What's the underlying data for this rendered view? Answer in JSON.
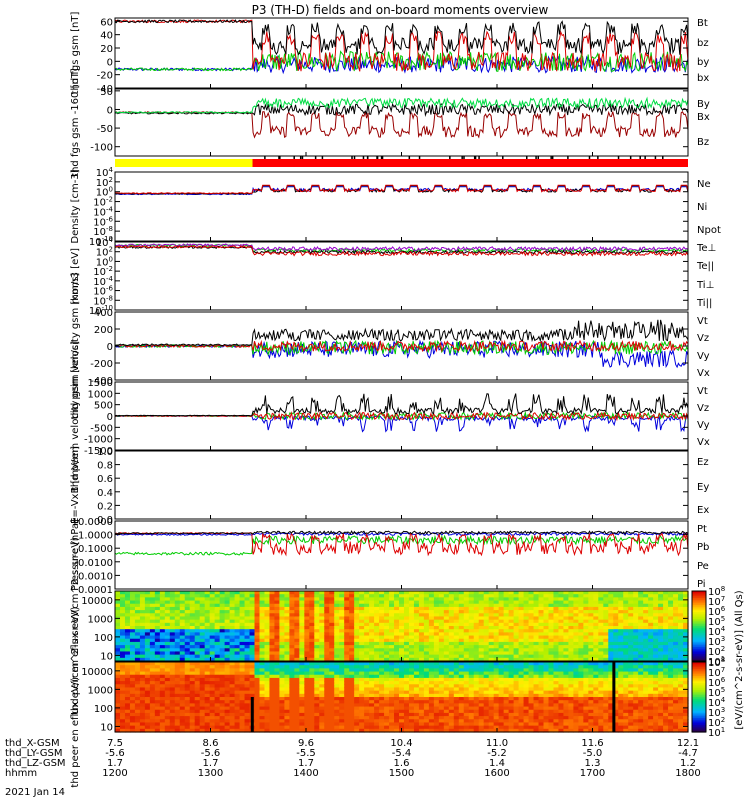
{
  "title": "P3 (TH-D) fields and on-board moments overview",
  "date_label": "2021 Jan 14",
  "ephemeris": {
    "rows": [
      {
        "name": "thd_X-GSM",
        "values": [
          "7.5",
          "8.6",
          "9.6",
          "10.4",
          "11.0",
          "11.6",
          "12.1"
        ]
      },
      {
        "name": "thd_LY-GSM",
        "values": [
          "-5.6",
          "-5.6",
          "-5.5",
          "-5.4",
          "-5.2",
          "-5.0",
          "-4.7"
        ]
      },
      {
        "name": "thd_LZ-GSM",
        "values": [
          "1.7",
          "1.7",
          "1.7",
          "1.6",
          "1.4",
          "1.3",
          "1.2"
        ]
      },
      {
        "name": "hhmm",
        "values": [
          "1200",
          "1300",
          "1400",
          "1500",
          "1600",
          "1700",
          "1800"
        ]
      }
    ]
  },
  "chart_data": [
    {
      "type": "line",
      "ylabel": "thd fgs gsm [nT]",
      "ylim": [
        -40,
        65
      ],
      "yticks": [
        "60",
        "40",
        "20",
        "0",
        "-20",
        "-40"
      ],
      "yticks_values": [
        60,
        40,
        20,
        0,
        -20,
        -40
      ],
      "series": [
        {
          "name": "Bt",
          "color": "#000000"
        },
        {
          "name": "bz",
          "color": "#dd0000"
        },
        {
          "name": "by",
          "color": "#00cc00"
        },
        {
          "name": "bx",
          "color": "#0000dd"
        }
      ]
    },
    {
      "type": "line",
      "ylabel": "thd fgs gsm -160",
      "ylabel_unit": "[nT]",
      "ylim": [
        -125,
        55
      ],
      "yticks": [
        "50",
        "0",
        "-50",
        "-100"
      ],
      "yticks_values": [
        50,
        0,
        -50,
        -100
      ],
      "series": [
        {
          "name": "By",
          "color": "#00dd44"
        },
        {
          "name": "Bx",
          "color": "#000000"
        },
        {
          "name": "Bz",
          "color": "#990000"
        }
      ]
    },
    {
      "type": "line",
      "ylabel": "Density [cm-3]",
      "ylim": [
        -10,
        4
      ],
      "yscale": "log",
      "yticks": [
        "10^4",
        "10^2",
        "10^0",
        "10^-2",
        "10^-4",
        "10^-6",
        "10^-8",
        "10^-10"
      ],
      "yticks_values": [
        4,
        2,
        0,
        -2,
        -4,
        -6,
        -8,
        -10
      ],
      "series": [
        {
          "name": "Ne",
          "color": "#dd0000"
        },
        {
          "name": "Ni",
          "color": "#000000"
        },
        {
          "name": "Npot",
          "color": "#0000dd"
        }
      ]
    },
    {
      "type": "line",
      "ylabel": "mom3 [eV]",
      "ylim": [
        -10,
        4
      ],
      "yscale": "log",
      "yticks": [
        "10^4",
        "10^2",
        "10^0",
        "10^-2",
        "10^-4",
        "10^-6",
        "10^-8",
        "10^-10"
      ],
      "yticks_values": [
        4,
        2,
        0,
        -2,
        -4,
        -6,
        -8,
        -10
      ],
      "series": [
        {
          "name": "Te⊥",
          "color": "#dd0000"
        },
        {
          "name": "Te||",
          "color": "#000000"
        },
        {
          "name": "Ti⊥",
          "color": "#9900cc"
        },
        {
          "name": "Ti||",
          "color": "#00cc00"
        }
      ]
    },
    {
      "type": "line",
      "ylabel": "thd peim velocity gsm [km/s]",
      "ylim": [
        -400,
        400
      ],
      "yticks": [
        "400",
        "200",
        "0",
        "-200",
        "-400"
      ],
      "yticks_values": [
        400,
        200,
        0,
        -200,
        -400
      ],
      "series": [
        {
          "name": "Vt",
          "color": "#000000"
        },
        {
          "name": "Vz",
          "color": "#dd0000"
        },
        {
          "name": "Vy",
          "color": "#00cc00"
        },
        {
          "name": "Vx",
          "color": "#0000dd"
        }
      ]
    },
    {
      "type": "line",
      "ylabel": "thd peem velocity gsm [km/s]",
      "ylim": [
        -1500,
        1500
      ],
      "yticks": [
        "1500",
        "1000",
        "500",
        "0",
        "-500",
        "-1000",
        "-1500"
      ],
      "yticks_values": [
        1500,
        1000,
        500,
        0,
        -500,
        -1000,
        -1500
      ],
      "series": [
        {
          "name": "Vt",
          "color": "#000000"
        },
        {
          "name": "Vz",
          "color": "#dd0000"
        },
        {
          "name": "Vy",
          "color": "#00cc00"
        },
        {
          "name": "Vx",
          "color": "#0000dd"
        }
      ]
    },
    {
      "type": "line",
      "ylabel": "E=-VxB [mV/m]",
      "ylim": [
        0,
        1
      ],
      "yticks": [
        "1.0",
        "0.8",
        "0.6",
        "0.4",
        "0.2",
        "0.0"
      ],
      "yticks_values": [
        1.0,
        0.8,
        0.6,
        0.4,
        0.2,
        0.0
      ],
      "series": [
        {
          "name": "Ez",
          "color": "#dd0000"
        },
        {
          "name": "Ey",
          "color": "#00cc00"
        },
        {
          "name": "Ex",
          "color": "#0000dd"
        }
      ]
    },
    {
      "type": "line",
      "ylabel": "Pressure [nPa]",
      "ylim": [
        -4,
        1
      ],
      "yscale": "log",
      "yticks": [
        "10.0000",
        "1.0000",
        "0.1000",
        "0.0100",
        "0.0010",
        "0.0001"
      ],
      "yticks_values": [
        1,
        0,
        -1,
        -2,
        -3,
        -4
      ],
      "series": [
        {
          "name": "Pt",
          "color": "#000000"
        },
        {
          "name": "Pb",
          "color": "#dd0000"
        },
        {
          "name": "Pe",
          "color": "#00cc00"
        },
        {
          "name": "Pi",
          "color": "#0000dd"
        }
      ]
    },
    {
      "type": "heatmap",
      "ylabel": "thd peir en eflux eV/(cm^2-s-sr-eV)",
      "ylim": [
        5,
        30000
      ],
      "yscale": "log",
      "yticks": [
        "10000",
        "1000",
        "100",
        "10"
      ],
      "yticks_values": [
        10000,
        1000,
        100,
        10
      ]
    },
    {
      "type": "heatmap",
      "ylabel": "thd peer en eflux eV/(cm^2-s-sr-eV)",
      "ylim": [
        5,
        30000
      ],
      "yscale": "log",
      "yticks": [
        "10000",
        "1000",
        "100",
        "10"
      ],
      "yticks_values": [
        10000,
        1000,
        100,
        10
      ]
    }
  ],
  "colorbar": {
    "label": "[eV/(cm^2-s-sr-eV)] (All Qs)",
    "ticks": [
      "10^8",
      "10^7",
      "10^6",
      "10^5",
      "10^4",
      "10^3",
      "10^2",
      "10^1"
    ],
    "ticks2": [
      "10^8",
      "10^7",
      "10^6",
      "10^5",
      "10^4",
      "10^3",
      "10^2",
      "10^1"
    ]
  },
  "colors": {
    "mode_bar_yellow": "#ffff00",
    "mode_bar_red": "#ff0000"
  }
}
